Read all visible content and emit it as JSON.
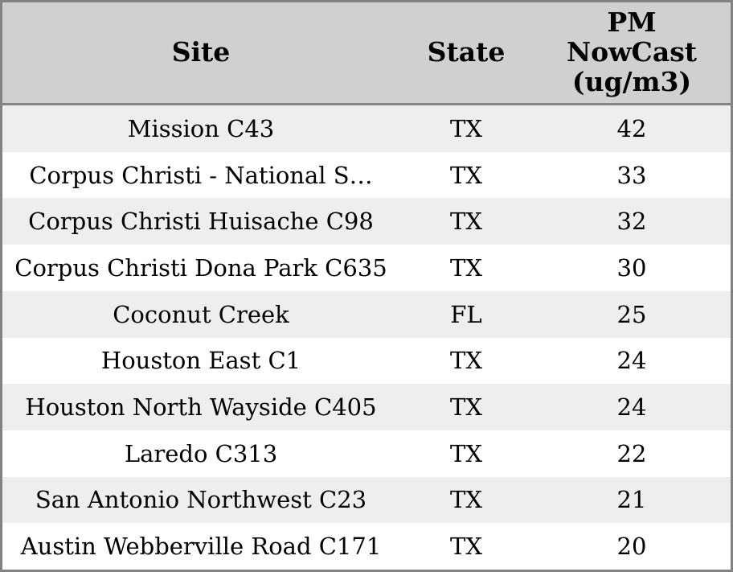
{
  "table": {
    "columns": [
      {
        "key": "site",
        "label": "Site"
      },
      {
        "key": "state",
        "label": "State"
      },
      {
        "key": "pm_nowcast",
        "label": "PM\nNowCast\n(ug/m3)"
      }
    ],
    "rows": [
      {
        "site": "Mission C43",
        "state": "TX",
        "pm_nowcast": "42"
      },
      {
        "site": "Corpus Christi - National S…",
        "state": "TX",
        "pm_nowcast": "33"
      },
      {
        "site": "Corpus Christi Huisache C98",
        "state": "TX",
        "pm_nowcast": "32"
      },
      {
        "site": "Corpus Christi Dona Park C635",
        "state": "TX",
        "pm_nowcast": "30"
      },
      {
        "site": "Coconut Creek",
        "state": "FL",
        "pm_nowcast": "25"
      },
      {
        "site": "Houston East C1",
        "state": "TX",
        "pm_nowcast": "24"
      },
      {
        "site": "Houston North Wayside C405",
        "state": "TX",
        "pm_nowcast": "24"
      },
      {
        "site": "Laredo C313",
        "state": "TX",
        "pm_nowcast": "22"
      },
      {
        "site": "San Antonio Northwest C23",
        "state": "TX",
        "pm_nowcast": "21"
      },
      {
        "site": "Austin Webberville Road C171",
        "state": "TX",
        "pm_nowcast": "20"
      }
    ]
  },
  "colors": {
    "header_bg": "#d0d0d0",
    "header_divider": "#858585",
    "row_alt_bg": "#eeeeee",
    "row_bg": "#ffffff",
    "outer_border": "#828282",
    "text": "#000000"
  },
  "chart_data": {
    "type": "table",
    "columns": [
      "Site",
      "State",
      "PM NowCast (ug/m3)"
    ],
    "rows": [
      [
        "Mission C43",
        "TX",
        42
      ],
      [
        "Corpus Christi - National S…",
        "TX",
        33
      ],
      [
        "Corpus Christi Huisache C98",
        "TX",
        32
      ],
      [
        "Corpus Christi Dona Park C635",
        "TX",
        30
      ],
      [
        "Coconut Creek",
        "FL",
        25
      ],
      [
        "Houston East C1",
        "TX",
        24
      ],
      [
        "Houston North Wayside C405",
        "TX",
        24
      ],
      [
        "Laredo C313",
        "TX",
        22
      ],
      [
        "San Antonio Northwest C23",
        "TX",
        21
      ],
      [
        "Austin Webberville Road C171",
        "TX",
        20
      ]
    ],
    "layout_hints": {
      "header_background": "#d0d0d0",
      "alternating_row_backgrounds": [
        "#eeeeee",
        "#ffffff"
      ],
      "cell_alignment": "center",
      "sorted_by": "PM NowCast (ug/m3) descending"
    }
  }
}
